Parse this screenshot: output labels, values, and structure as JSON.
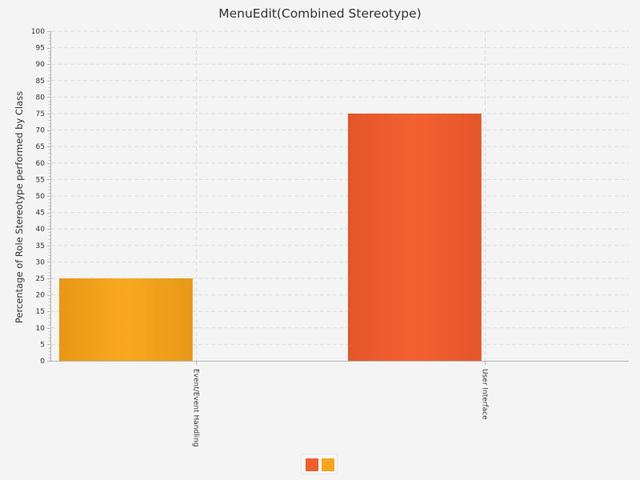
{
  "chart_data": {
    "type": "bar",
    "title": "MenuEdit(Combined Stereotype)",
    "xlabel": "",
    "ylabel": "Percentage of Role Stereotype performed by Class",
    "categories": [
      "Event/Event Handling",
      "User Interface"
    ],
    "values": [
      25,
      75
    ],
    "bar_colors": [
      "#f8a51e",
      "#f05d2d"
    ],
    "ylim": [
      0,
      100
    ],
    "y_ticks": [
      0,
      5,
      10,
      15,
      20,
      25,
      30,
      35,
      40,
      45,
      50,
      55,
      60,
      65,
      70,
      75,
      80,
      85,
      90,
      95,
      100
    ],
    "grid": true,
    "legend": {
      "placement": "bottom",
      "swatch_colors": [
        "#f05d2d",
        "#f8a51e"
      ]
    }
  }
}
